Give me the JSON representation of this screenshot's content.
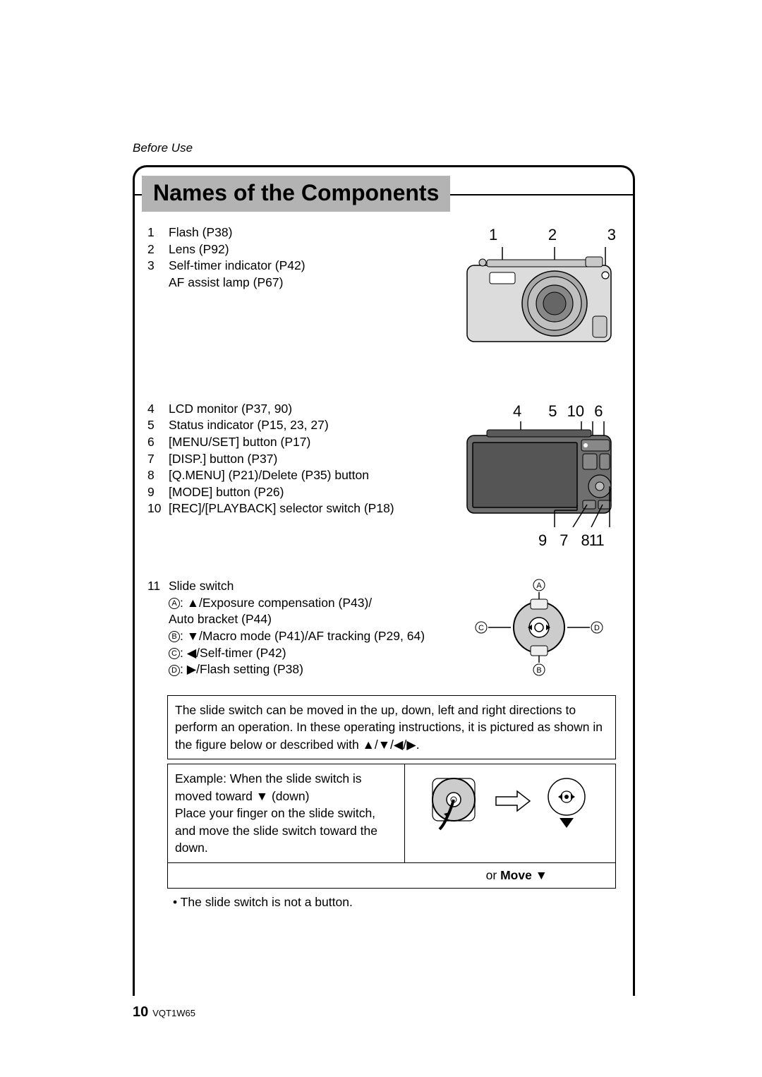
{
  "section_header": "Before Use",
  "title": "Names of the Components",
  "front_numbers": [
    "1",
    "2",
    "3"
  ],
  "list1": [
    {
      "n": "1",
      "t": "Flash (P38)"
    },
    {
      "n": "2",
      "t": "Lens (P92)"
    },
    {
      "n": "3",
      "t": "Self-timer indicator (P42)\nAF assist lamp (P67)"
    }
  ],
  "back_numbers_top": [
    "4",
    "5",
    "10",
    "6"
  ],
  "back_numbers_bottom": [
    "9",
    "7",
    "8",
    "11"
  ],
  "list2": [
    {
      "n": "4",
      "t": "LCD monitor (P37, 90)"
    },
    {
      "n": "5",
      "t": "Status indicator (P15, 23, 27)"
    },
    {
      "n": "6",
      "t": "[MENU/SET] button (P17)"
    },
    {
      "n": "7",
      "t": "[DISP.] button (P37)"
    },
    {
      "n": "8",
      "t": "[Q.MENU] (P21)/Delete (P35) button"
    },
    {
      "n": "9",
      "t": "[MODE] button (P26)"
    },
    {
      "n": "10",
      "t": "[REC]/[PLAYBACK] selector switch (P18)"
    }
  ],
  "list3": {
    "n": "11",
    "lead": "Slide switch",
    "a_label": "A",
    "a_text": ": ▲/Exposure compensation (P43)/\nAuto bracket (P44)",
    "b_label": "B",
    "b_text": ": ▼/Macro mode (P41)/AF tracking (P29, 64)",
    "c_label": "C",
    "c_text": ": ◀/Self-timer (P42)",
    "d_label": "D",
    "d_text": ": ▶/Flash setting (P38)"
  },
  "slide_labels": {
    "a": "A",
    "b": "B",
    "c": "C",
    "d": "D"
  },
  "note_box": "The slide switch can be moved in the up, down, left and right directions to perform an operation. In these operating instructions, it is pictured as shown in the figure below or described with ▲/▼/◀/▶.",
  "example_left": "Example: When the slide switch is moved toward ▼ (down)\nPlace your finger on the slide switch, and move the slide switch toward the down.",
  "or_move": "or Move ▼",
  "bullet_note": "• The slide switch is not a button.",
  "footer": {
    "page": "10",
    "code": "VQT1W65"
  },
  "colors": {
    "band_bg": "#b3b3b3",
    "camera_body": "#dcdcdc",
    "camera_dark": "#6f6f6f",
    "screen": "#555555",
    "line": "#000000"
  }
}
